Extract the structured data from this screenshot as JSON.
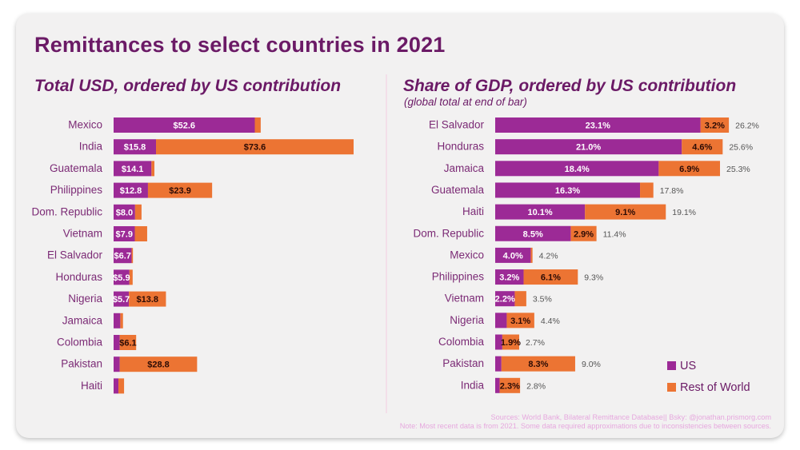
{
  "title": "Remittances to select countries in 2021",
  "colors": {
    "us": "#9c2a96",
    "row": "#ec7433",
    "text": "#6b1a66",
    "inlabel_us": "#ffffff",
    "inlabel_row": "#2b0b05",
    "total": "#555555"
  },
  "legend": [
    {
      "label": "US",
      "key": "us"
    },
    {
      "label": "Rest of World",
      "key": "row"
    }
  ],
  "footer": {
    "sources": "Sources: World Bank, Bilateral Remittance Database|| Bsky: @jonathan.prismorg.com",
    "note": "Note: Most recent data is from 2021. Some data required approximations due to inconsistencies between sources."
  },
  "chart_data": [
    {
      "type": "bar",
      "orientation": "horizontal",
      "stacked": true,
      "title": "Total USD, ordered by US contribution",
      "unit": "USD billions",
      "label_prefix": "$",
      "label_suffix": "",
      "categories": [
        "Mexico",
        "India",
        "Guatemala",
        "Philippines",
        "Dom. Republic",
        "Vietnam",
        "El Salvador",
        "Honduras",
        "Nigeria",
        "Jamaica",
        "Colombia",
        "Pakistan",
        "Haiti"
      ],
      "series": [
        {
          "name": "US",
          "values": [
            52.6,
            15.8,
            14.1,
            12.8,
            8.0,
            7.9,
            6.7,
            5.9,
            5.7,
            2.5,
            2.3,
            2.3,
            1.8
          ],
          "labels": [
            "$52.6",
            "$15.8",
            "$14.1",
            "$12.8",
            "$8.0",
            "$7.9",
            "$6.7",
            "$5.9",
            "$5.7",
            "",
            "",
            "",
            ""
          ]
        },
        {
          "name": "Rest of World",
          "values": [
            2.2,
            73.6,
            1.1,
            23.9,
            2.4,
            4.6,
            0.5,
            1.2,
            13.8,
            1.0,
            6.1,
            28.8,
            2.1
          ],
          "labels": [
            "",
            "$73.6",
            "",
            "$23.9",
            "",
            "",
            "",
            "",
            "$13.8",
            "",
            "$6.1",
            "$28.8",
            ""
          ]
        }
      ],
      "totals_shown": false,
      "xlim": [
        0,
        89.4
      ]
    },
    {
      "type": "bar",
      "orientation": "horizontal",
      "stacked": true,
      "title": "Share of GDP, ordered by US contribution",
      "subtitle": "(global total at end of bar)",
      "unit": "% of GDP",
      "categories": [
        "El Salvador",
        "Honduras",
        "Jamaica",
        "Guatemala",
        "Haiti",
        "Dom. Republic",
        "Mexico",
        "Philippines",
        "Vietnam",
        "Nigeria",
        "Colombia",
        "Pakistan",
        "India"
      ],
      "series": [
        {
          "name": "US",
          "values": [
            23.1,
            21.0,
            18.4,
            16.3,
            10.1,
            8.5,
            4.0,
            3.2,
            2.2,
            1.3,
            0.8,
            0.7,
            0.5
          ],
          "labels": [
            "23.1%",
            "21.0%",
            "18.4%",
            "16.3%",
            "10.1%",
            "8.5%",
            "4.0%",
            "3.2%",
            "2.2%",
            "",
            "",
            "",
            ""
          ]
        },
        {
          "name": "Rest of World",
          "values": [
            3.2,
            4.6,
            6.9,
            1.5,
            9.1,
            2.9,
            0.2,
            6.1,
            1.3,
            3.1,
            1.9,
            8.3,
            2.3
          ],
          "labels": [
            "3.2%",
            "4.6%",
            "6.9%",
            "",
            "9.1%",
            "2.9%",
            "",
            "6.1%",
            "",
            "3.1%",
            "1.9%",
            "8.3%",
            "2.3%"
          ]
        }
      ],
      "totals": [
        "26.2%",
        "25.6%",
        "25.3%",
        "17.8%",
        "19.1%",
        "11.4%",
        "4.2%",
        "9.3%",
        "3.5%",
        "4.4%",
        "2.7%",
        "9.0%",
        "2.8%"
      ],
      "xlim": [
        0,
        26.2
      ]
    }
  ]
}
